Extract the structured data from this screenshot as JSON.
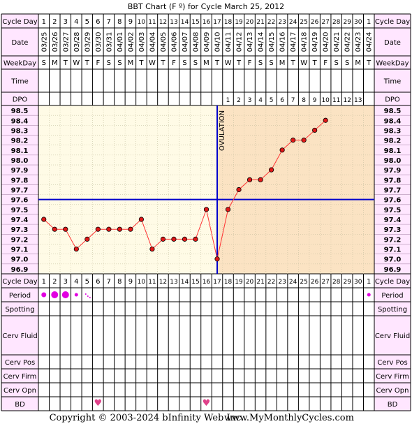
{
  "title": "BBT Chart (F º) for Cycle March 25, 2012",
  "labels": {
    "cycle_day": "Cycle Day",
    "date": "Date",
    "weekday": "WeekDay",
    "time": "Time",
    "dpo": "DPO",
    "period": "Period",
    "spotting": "Spotting",
    "cerv_fluid": "Cerv Fluid",
    "cerv_pos": "Cerv Pos",
    "cerv_firm": "Cerv Firm",
    "cerv_opn": "Cerv Opn",
    "bd": "BD"
  },
  "ovulation_label": "OVULATION",
  "footer": {
    "copyright": "Copyright © 2003-2024 bInfinity Web Inc.",
    "site": "www.MyMonthlyCycles.com"
  },
  "colors": {
    "pink": "#ffe6ff",
    "pre_bg": "#fffbe6",
    "post_bg": "#fbe3c3",
    "line": "#ff3333",
    "marker": "#e01818",
    "coverline": "#0000cc",
    "period_dot": "#e100e1",
    "heart": "#e0418a"
  },
  "chart_data": {
    "type": "line",
    "title": "BBT Chart (F º) for Cycle March 25, 2012",
    "cycle_days": [
      1,
      2,
      3,
      4,
      5,
      6,
      7,
      8,
      9,
      10,
      11,
      12,
      13,
      14,
      15,
      16,
      17,
      18,
      19,
      20,
      21,
      22,
      23,
      24,
      25,
      26,
      27,
      28,
      29,
      30,
      1
    ],
    "dates": [
      "03/25",
      "03/26",
      "03/27",
      "03/28",
      "03/29",
      "03/30",
      "03/31",
      "04/01",
      "04/02",
      "04/03",
      "04/04",
      "04/05",
      "04/06",
      "04/07",
      "04/08",
      "04/09",
      "04/10",
      "04/11",
      "04/12",
      "04/13",
      "04/14",
      "04/15",
      "04/16",
      "04/17",
      "04/18",
      "04/19",
      "04/20",
      "04/21",
      "04/22",
      "04/23",
      "04/24"
    ],
    "weekdays": [
      "S",
      "M",
      "T",
      "W",
      "T",
      "F",
      "S",
      "S",
      "M",
      "T",
      "W",
      "T",
      "F",
      "S",
      "S",
      "M",
      "T",
      "W",
      "T",
      "F",
      "S",
      "S",
      "M",
      "T",
      "W",
      "T",
      "F",
      "S",
      "S",
      "M",
      "T"
    ],
    "dpo": [
      "",
      "",
      "",
      "",
      "",
      "",
      "",
      "",
      "",
      "",
      "",
      "",
      "",
      "",
      "",
      "",
      "",
      "1",
      "2",
      "3",
      "4",
      "5",
      "6",
      "7",
      "8",
      "9",
      "10",
      "11",
      "12",
      "13",
      ""
    ],
    "temperatures": [
      97.4,
      97.3,
      97.3,
      97.1,
      97.2,
      97.3,
      97.3,
      97.3,
      97.3,
      97.4,
      97.1,
      97.2,
      97.2,
      97.2,
      97.2,
      97.5,
      97.0,
      97.5,
      97.7,
      97.8,
      97.8,
      97.9,
      98.1,
      98.2,
      98.2,
      98.3,
      98.4,
      null,
      null,
      null,
      null
    ],
    "ylim": [
      96.9,
      98.5
    ],
    "yticks": [
      98.5,
      98.4,
      98.3,
      98.2,
      98.1,
      98.0,
      97.9,
      97.8,
      97.7,
      97.6,
      97.5,
      97.4,
      97.3,
      97.2,
      97.1,
      97.0,
      96.9
    ],
    "coverline": 97.6,
    "ovulation_day_index": 16,
    "period": [
      3,
      4,
      4,
      2,
      1,
      0,
      0,
      0,
      0,
      0,
      0,
      0,
      0,
      0,
      0,
      0,
      0,
      0,
      0,
      0,
      0,
      0,
      0,
      0,
      0,
      0,
      0,
      0,
      0,
      0,
      2
    ],
    "bd_days": [
      5,
      15
    ]
  }
}
